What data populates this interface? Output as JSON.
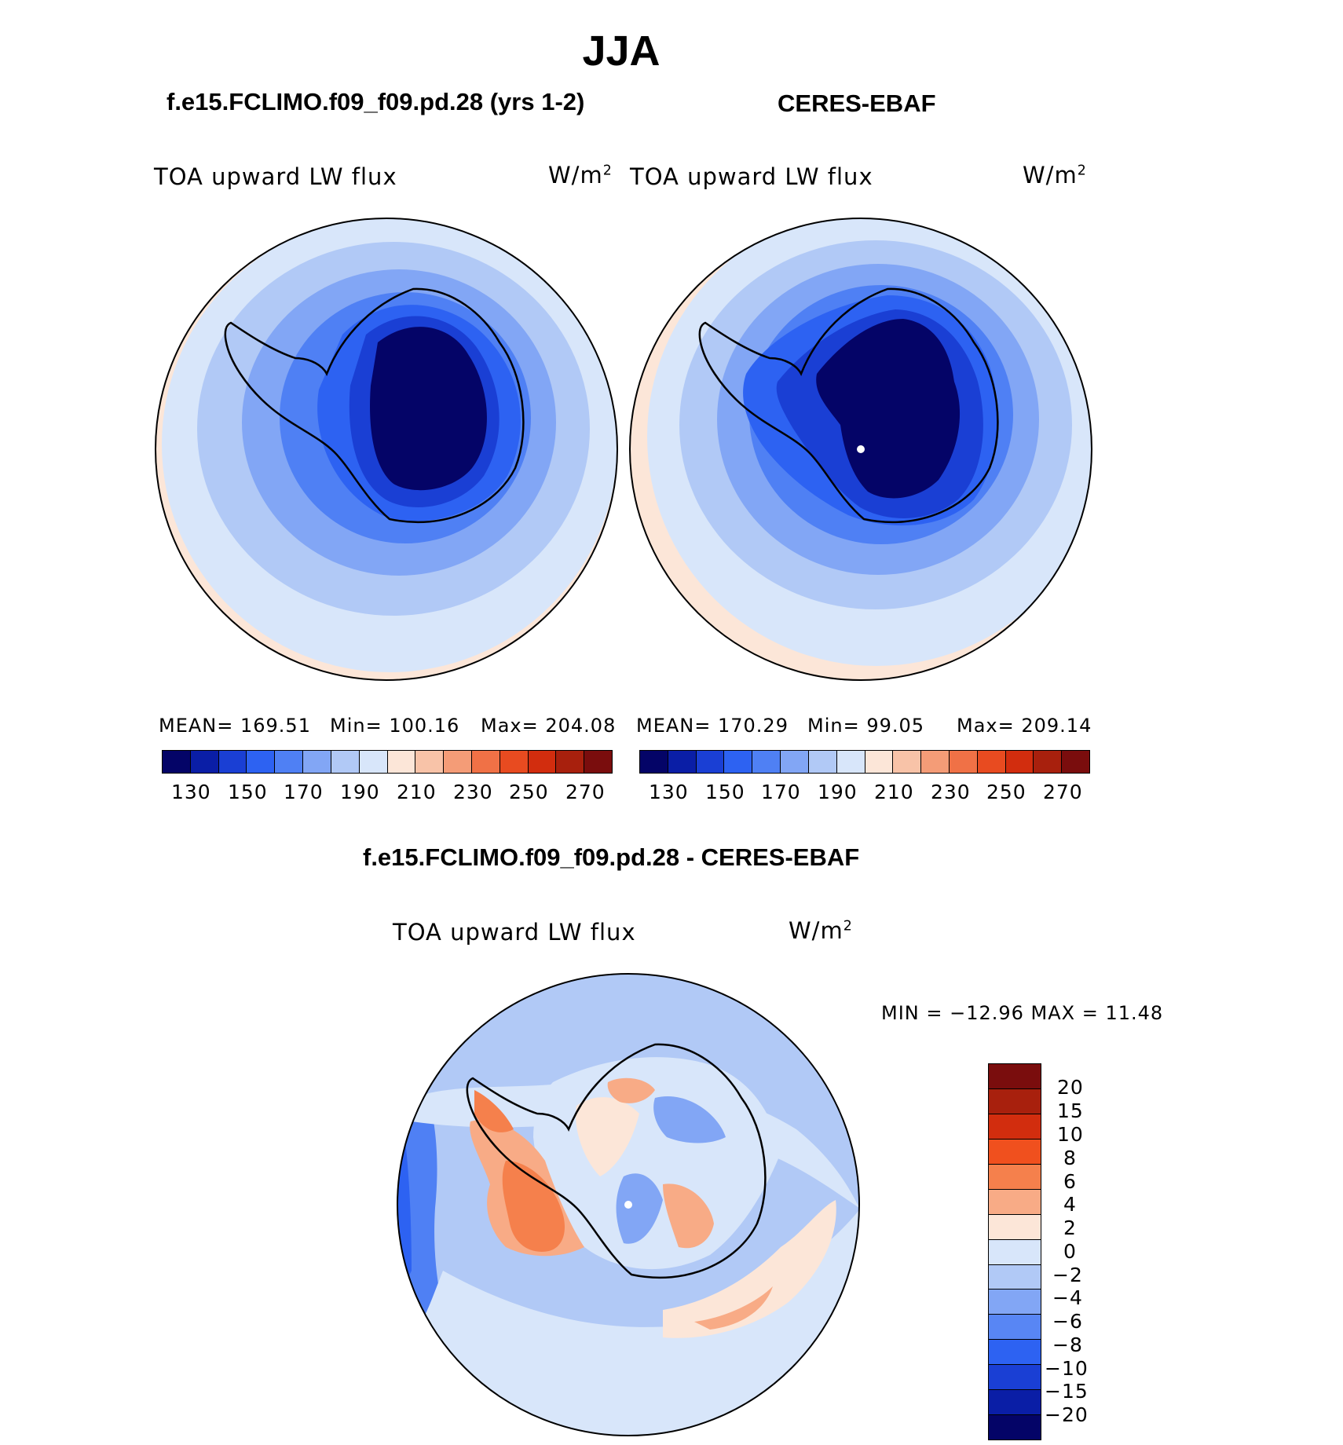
{
  "figure_title": "JJA",
  "panels": {
    "model": {
      "title": "f.e15.FCLIMO.f09_f09.pd.28 (yrs 1-2)",
      "left_label": "TOA upward LW flux",
      "unit_base": "W/m",
      "unit_exp": "2",
      "mean": "MEAN=  169.51",
      "min": "Min=  100.16",
      "max": "Max=  204.08"
    },
    "obs": {
      "title": "CERES-EBAF",
      "left_label": "TOA upward LW flux",
      "unit_base": "W/m",
      "unit_exp": "2",
      "mean": "MEAN=  170.29",
      "min": "Min=    99.05",
      "max": "Max=  209.14"
    },
    "diff": {
      "title": "f.e15.FCLIMO.f09_f09.pd.28 - CERES-EBAF",
      "left_label": "TOA upward LW flux",
      "unit_base": "W/m",
      "unit_exp": "2",
      "minmax": "MIN  =  −12.96  MAX  =    11.48"
    }
  },
  "colorbars": {
    "abs": {
      "ticks": [
        "130",
        "150",
        "170",
        "190",
        "210",
        "230",
        "250",
        "270"
      ],
      "colors": [
        "#040467",
        "#0a1ea6",
        "#1a3fd4",
        "#2d62f2",
        "#4f80f4",
        "#82a6f5",
        "#b1c9f6",
        "#d8e6fa",
        "#fce6d8",
        "#f8c3a8",
        "#f49c77",
        "#f07146",
        "#e84b20",
        "#d22d0e",
        "#a8200d",
        "#7a0d0d"
      ]
    },
    "diff": {
      "ticks": [
        "20",
        "15",
        "10",
        "8",
        "6",
        "4",
        "2",
        "0",
        "−2",
        "−4",
        "−6",
        "−8",
        "−10",
        "−15",
        "−20"
      ],
      "colors": [
        "#7a0d0d",
        "#a8200d",
        "#d22d0e",
        "#f0501e",
        "#f5804c",
        "#f8ab86",
        "#fce6d8",
        "#d8e6fa",
        "#b1c9f6",
        "#82a6f5",
        "#5886f4",
        "#2d62f2",
        "#1a3fd4",
        "#0a1ea6",
        "#040467"
      ]
    }
  }
}
